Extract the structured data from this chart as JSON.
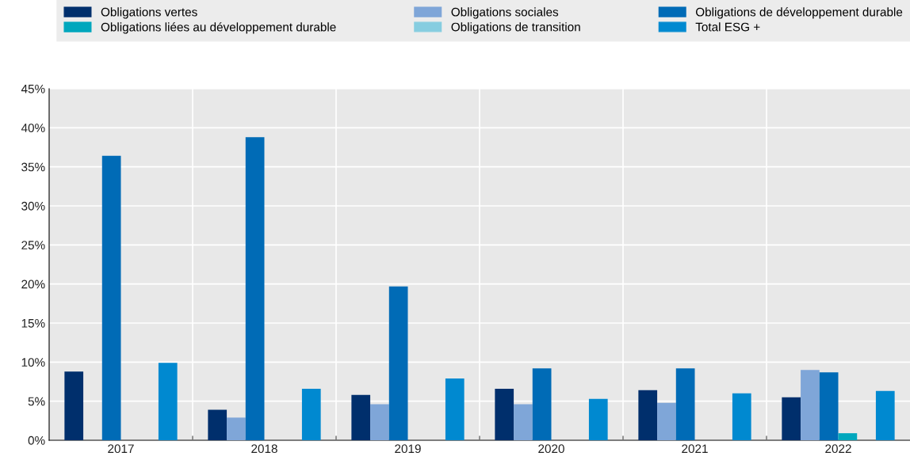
{
  "chart_data": {
    "type": "bar",
    "categories": [
      "2017",
      "2018",
      "2019",
      "2020",
      "2021",
      "2022"
    ],
    "series": [
      {
        "name": "Obligations vertes",
        "color": "#002f6c",
        "values": [
          8.8,
          3.9,
          5.8,
          6.6,
          6.4,
          5.5
        ]
      },
      {
        "name": "Obligations sociales",
        "color": "#7fa6d8",
        "values": [
          null,
          2.9,
          4.6,
          4.6,
          4.8,
          9.0
        ]
      },
      {
        "name": "Obligations de développement durable",
        "color": "#006bb6",
        "values": [
          36.4,
          38.8,
          19.7,
          9.2,
          9.2,
          8.7
        ]
      },
      {
        "name": "Obligations liées au développement durable",
        "color": "#00a7bd",
        "values": [
          null,
          null,
          null,
          null,
          null,
          0.9
        ]
      },
      {
        "name": "Obligations de transition",
        "color": "#86cde0",
        "values": [
          null,
          null,
          null,
          null,
          null,
          null
        ]
      },
      {
        "name": "Total ESG +",
        "color": "#0089d0",
        "values": [
          9.9,
          6.6,
          7.9,
          5.3,
          6.0,
          6.3
        ]
      }
    ],
    "ylim": [
      0,
      45
    ],
    "yticks": [
      {
        "value": 0,
        "label": "0%"
      },
      {
        "value": 5,
        "label": "5%"
      },
      {
        "value": 10,
        "label": "10%"
      },
      {
        "value": 15,
        "label": "15%"
      },
      {
        "value": 20,
        "label": "20%"
      },
      {
        "value": 25,
        "label": "25%"
      },
      {
        "value": 30,
        "label": "30%"
      },
      {
        "value": 35,
        "label": "35%"
      },
      {
        "value": 40,
        "label": "40%"
      },
      {
        "value": 45,
        "label": "45%"
      }
    ],
    "grid": "y",
    "legend": "top"
  }
}
